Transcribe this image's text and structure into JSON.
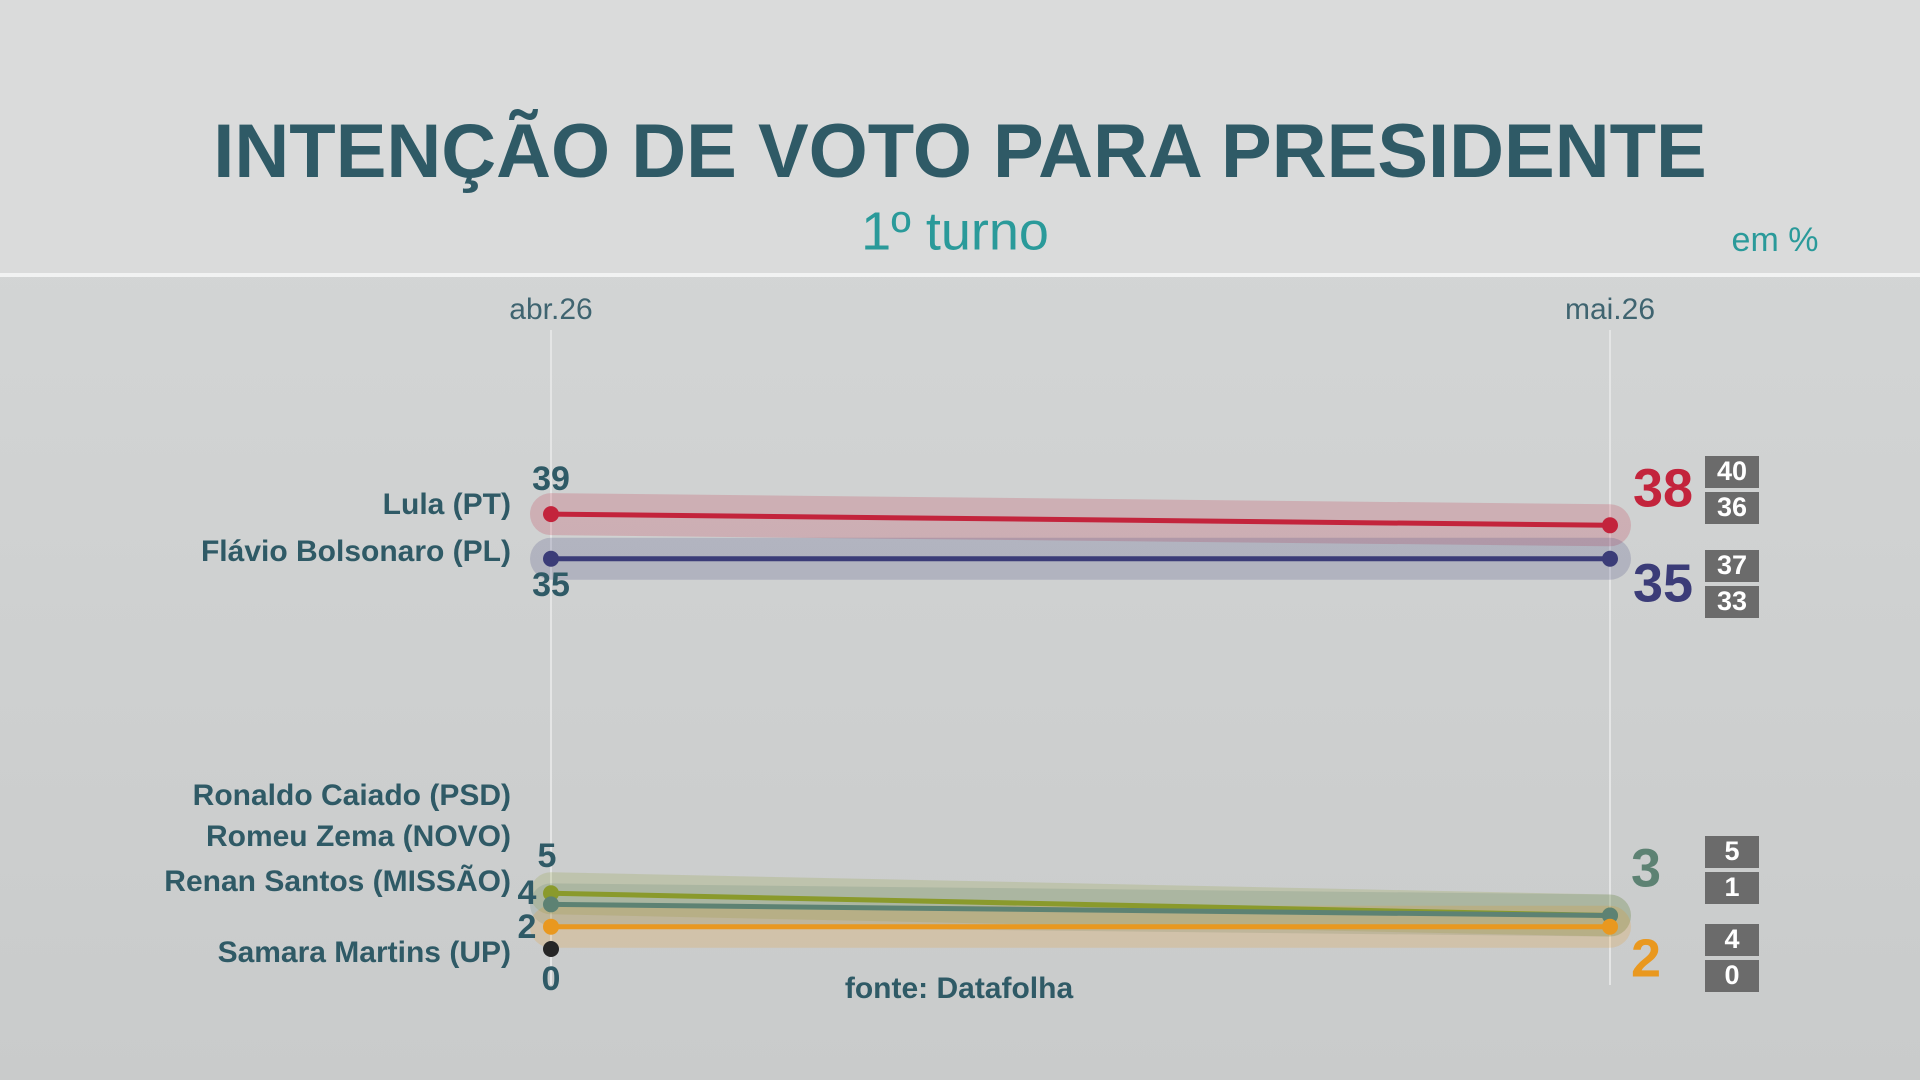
{
  "chart_data": {
    "type": "line",
    "title": "INTENÇÃO DE VOTO PARA PRESIDENTE",
    "subtitle": "1º turno",
    "unit_note": "em %",
    "source": "fonte: Datafolha",
    "categories": [
      "abr.26",
      "mai.26"
    ],
    "ylim": [
      0,
      40
    ],
    "series": [
      {
        "name": "Lula (PT)",
        "color": "#c3243c",
        "values": [
          39,
          38
        ],
        "margin": {
          "upper": 40,
          "lower": 36
        }
      },
      {
        "name": "Flávio Bolsonaro (PL)",
        "color": "#3b3c78",
        "values": [
          35,
          35
        ],
        "margin": {
          "upper": 37,
          "lower": 33
        }
      },
      {
        "name": "Ronaldo Caiado (PSD)",
        "color": "#8a9a2c",
        "values": [
          5,
          3
        ]
      },
      {
        "name": "Romeu Zema (NOVO)",
        "color": "#5d8273",
        "values": [
          4,
          3
        ],
        "margin": {
          "upper": 5,
          "lower": 1
        }
      },
      {
        "name": "Renan Santos (MISSÃO)",
        "color": "#e9981f",
        "values": [
          2,
          2
        ],
        "margin": {
          "upper": 4,
          "lower": 0
        }
      },
      {
        "name": "Samara Martins (UP)",
        "color": "#262626",
        "values": [
          0,
          null
        ]
      }
    ]
  }
}
